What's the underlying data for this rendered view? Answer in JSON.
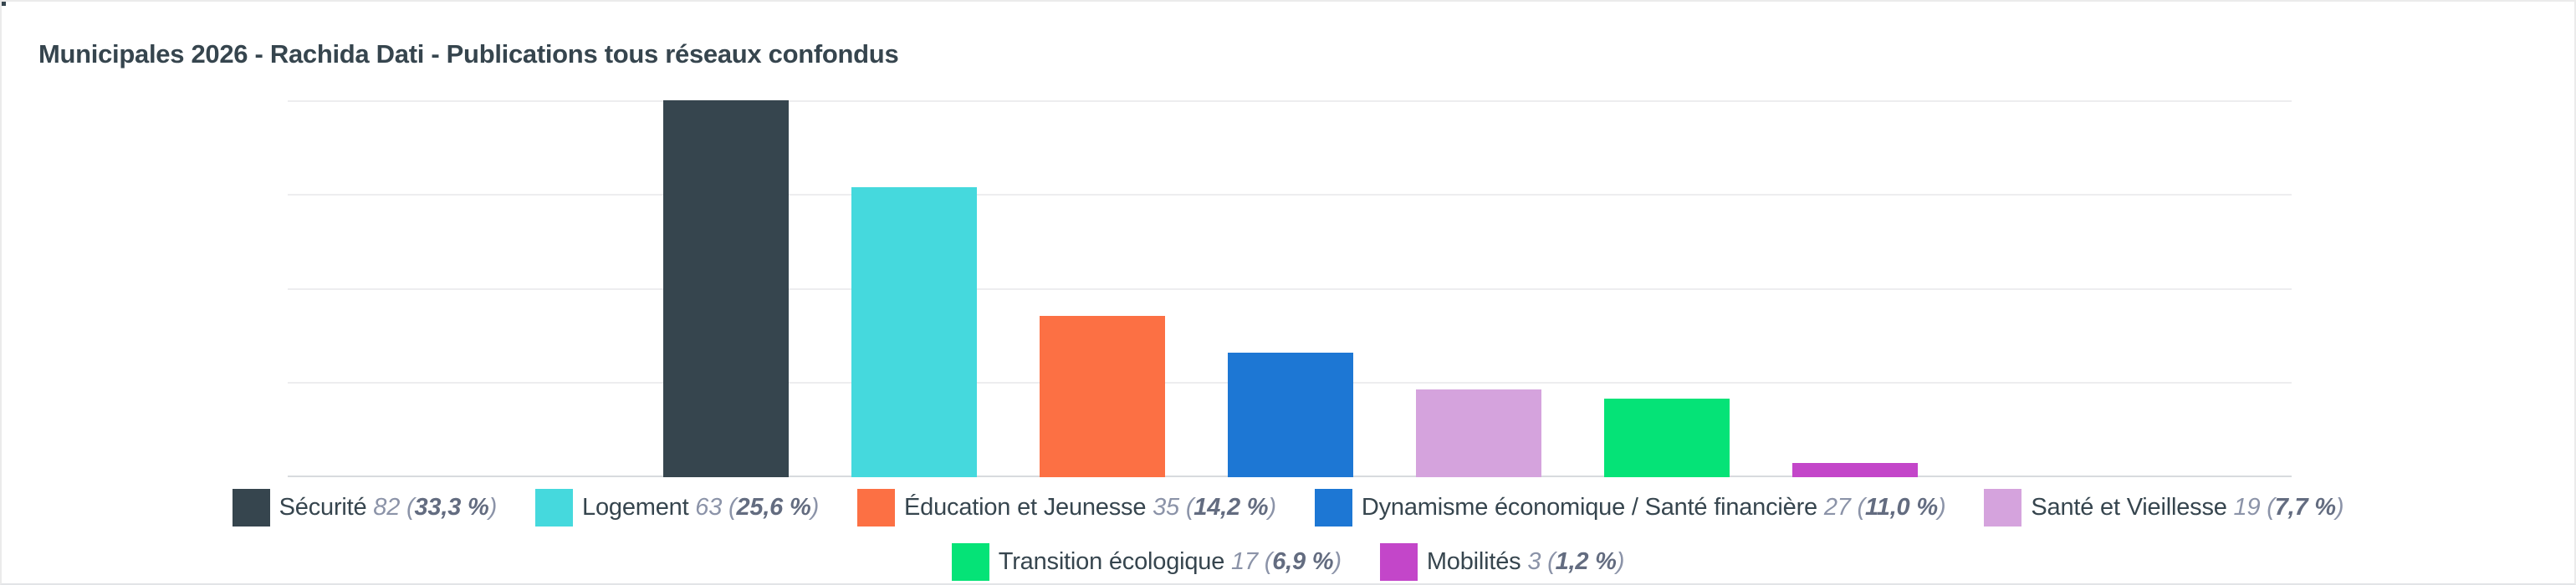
{
  "title": "Municipales 2026 - Rachida Dati - Publications tous réseaux confondus",
  "chart_data": {
    "type": "bar",
    "title": "Municipales 2026 - Rachida Dati - Publications tous réseaux confondus",
    "categories": [
      "Sécurité",
      "Logement",
      "Éducation et Jeunesse",
      "Dynamisme économique / Santé financière",
      "Santé et Vieillesse",
      "Transition écologique",
      "Mobilités"
    ],
    "values": [
      82,
      63,
      35,
      27,
      19,
      17,
      3
    ],
    "percent_labels": [
      "33,3 %",
      "25,6 %",
      "14,2 %",
      "11,0 %",
      "7,7 %",
      "6,9 %",
      "1,2 %"
    ],
    "colors": [
      "#36454e",
      "#45d9dd",
      "#fc7044",
      "#1d77d4",
      "#d5a3dd",
      "#05e377",
      "#c346c9"
    ],
    "xlabel": "",
    "ylabel": "",
    "ylim": [
      0,
      82
    ],
    "grid": "horizontal-only",
    "gridline_count": 5,
    "gridline_color": "#ededef",
    "baseline_color": "#d8dbde",
    "axis_tick_labels": "none",
    "legend_position": "bottom-centered",
    "legend_rows": [
      [
        0,
        1,
        2,
        3,
        4
      ],
      [
        5,
        6
      ]
    ]
  },
  "style_colors": {
    "title_text": "#36454e",
    "legend_label_text": "#36454e",
    "legend_value_text": "#8b93a8",
    "legend_percent_text": "#636c80",
    "card_border": "#ebebeb"
  }
}
